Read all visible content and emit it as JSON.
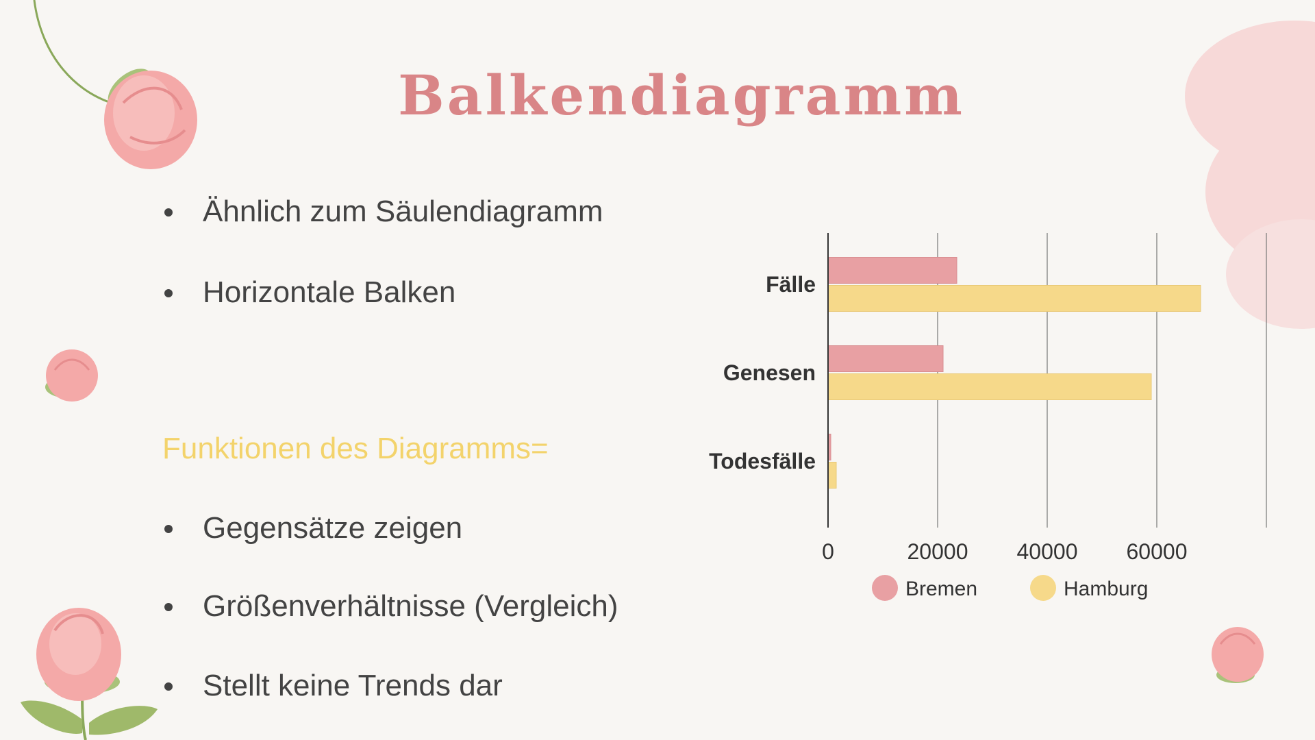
{
  "slide": {
    "title": "Balkendiagramm",
    "bullets_top": [
      "Ähnlich zum Säulendiagramm",
      "Horizontale Balken"
    ],
    "subheading": "Funktionen des Diagramms=",
    "bullets_bottom": [
      "Gegensätze zeigen",
      "Größenverhältnisse (Vergleich)",
      "Stellt keine Trends dar"
    ]
  },
  "colors": {
    "title": "#d98587",
    "subheading": "#f3d36b",
    "bremen": "#e8a0a3",
    "hamburg": "#f6d98a",
    "text": "#434343"
  },
  "chart_data": {
    "type": "bar",
    "orientation": "horizontal",
    "categories": [
      "Fälle",
      "Genesen",
      "Todesfälle"
    ],
    "series": [
      {
        "name": "Bremen",
        "values": [
          23500,
          21000,
          500
        ]
      },
      {
        "name": "Hamburg",
        "values": [
          68000,
          59000,
          1500
        ]
      }
    ],
    "xlim": [
      0,
      80000
    ],
    "xticks": [
      0,
      20000,
      40000,
      60000
    ],
    "grid": true,
    "legend": "bottom"
  }
}
